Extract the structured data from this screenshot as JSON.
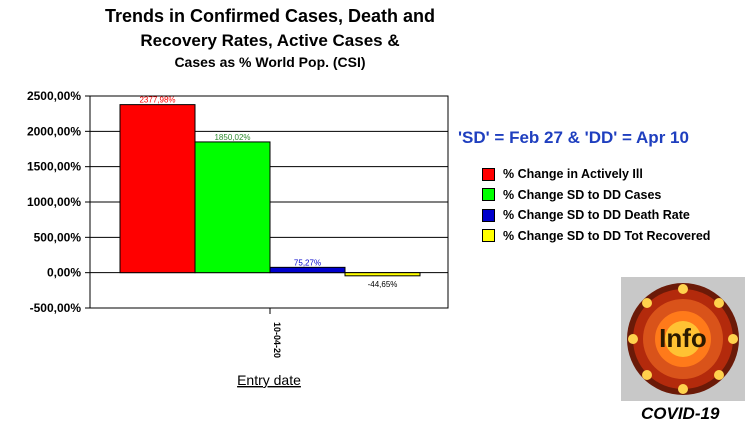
{
  "title_lines": [
    "Trends in Confirmed Cases, Death and",
    "Recovery Rates, Active Cases &",
    "Cases as % World Pop. (CSI)"
  ],
  "note": "'SD' = Feb 27 & 'DD' = Apr 10",
  "badge": {
    "label": "Info",
    "caption": "COVID-19"
  },
  "colors": {
    "red": "#ff0000",
    "green": "#00ff00",
    "blue": "#0000cc",
    "yellow": "#ffff00",
    "note": "#1f3fbf"
  },
  "chart_data": {
    "type": "bar",
    "xlabel": "Entry date",
    "categories": [
      "10-04-20"
    ],
    "ylim": [
      -500,
      2500
    ],
    "yticks": [
      -500,
      0,
      500,
      1000,
      1500,
      2000,
      2500
    ],
    "ytick_labels": [
      "-500,00%",
      "0,00%",
      "500,00%",
      "1000,00%",
      "1500,00%",
      "2000,00%",
      "2500,00%"
    ],
    "grid": true,
    "legend_position": "right",
    "series": [
      {
        "name": "% Change in Actively Ill",
        "values": [
          2377.98
        ],
        "label": "2377,98%",
        "color": "#ff0000"
      },
      {
        "name": "% Change SD to DD Cases",
        "values": [
          1850.02
        ],
        "label": "1850,02%",
        "color": "#00ff00"
      },
      {
        "name": "% Change SD to DD Death Rate",
        "values": [
          75.27
        ],
        "label": "75,27%",
        "color": "#0000cc"
      },
      {
        "name": "% Change SD to DD Tot Recovered",
        "values": [
          -44.65
        ],
        "label": "-44,65%",
        "color": "#ffff00"
      }
    ]
  }
}
